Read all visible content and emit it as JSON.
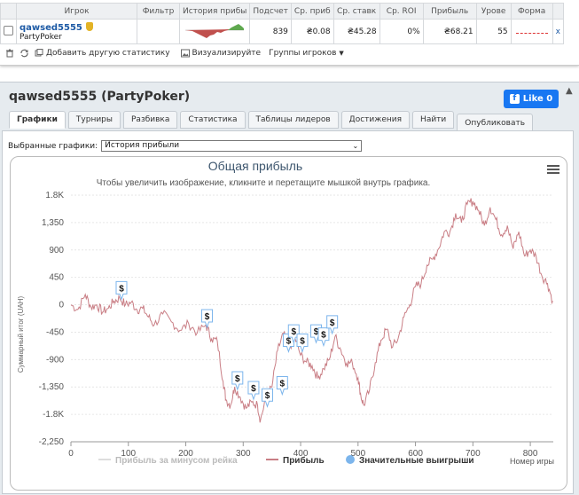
{
  "table": {
    "headers": [
      "Игрок",
      "Фильтр",
      "История прибы",
      "Подсчет",
      "Ср. приб",
      "Ср. ставк",
      "Ср. ROI",
      "Прибыль",
      "Урове",
      "Форма"
    ],
    "row": {
      "player_name": "qawsed5555",
      "site": "PartyPoker",
      "count": "839",
      "avg_profit": "₴0.08",
      "avg_stake": "₴45.28",
      "avg_roi": "0%",
      "profit": "₴68.21",
      "level": "55",
      "remove": "x"
    }
  },
  "toolbar": {
    "add_stats": "Добавить другую статистику",
    "visualize": "Визуализируйте",
    "player_groups": "Группы игроков"
  },
  "panel": {
    "title": "qawsed5555 (PartyPoker)",
    "like_label": "Like 0",
    "tabs": [
      "Графики",
      "Турниры",
      "Разбивка",
      "Статистика",
      "Таблицы лидеров",
      "Достижения",
      "Найти"
    ],
    "publish_tab": "Опубликовать",
    "selector_label": "Выбранные графики:",
    "selector_value": "История прибыли"
  },
  "colors": {
    "accent": "#1d5aa5",
    "profit_line": "#c97e85",
    "rake_line": "#dddddd",
    "marker": "#7cb5ec",
    "like": "#1877f2"
  },
  "chart_data": {
    "type": "line",
    "title": "Общая прибыль",
    "subtitle": "Чтобы увеличить изображение, кликните и перетащите мышкой внутрь графика.",
    "xlabel": "Номер игры",
    "ylabel": "Суммарный итог (UAH)",
    "xlim": [
      0,
      840
    ],
    "ylim": [
      -2250,
      1800
    ],
    "y_ticks": [
      "1.8K",
      "1,350",
      "900",
      "450",
      "0",
      "-450",
      "-900",
      "-1,350",
      "-1.8K",
      "-2,250"
    ],
    "x_ticks": [
      "0",
      "100",
      "200",
      "300",
      "400",
      "500",
      "600",
      "700",
      "800"
    ],
    "legend": [
      "Прибыль за минусом рейка",
      "Прибыль",
      "Значительные выигрыши"
    ],
    "series": [
      {
        "name": "Прибыль",
        "x": [
          0,
          12,
          25,
          35,
          45,
          55,
          65,
          75,
          85,
          95,
          105,
          115,
          125,
          135,
          145,
          160,
          175,
          190,
          205,
          220,
          235,
          245,
          255,
          265,
          270,
          278,
          285,
          295,
          305,
          315,
          325,
          330,
          340,
          350,
          360,
          370,
          380,
          390,
          400,
          410,
          420,
          430,
          440,
          450,
          460,
          470,
          480,
          490,
          500,
          505,
          510,
          520,
          530,
          540,
          550,
          560,
          570,
          580,
          590,
          600,
          610,
          620,
          630,
          640,
          650,
          660,
          670,
          680,
          690,
          700,
          710,
          720,
          730,
          740,
          750,
          760,
          770,
          780,
          790,
          800,
          810,
          820,
          830,
          839
        ],
        "y": [
          0,
          -80,
          170,
          -40,
          0,
          -120,
          -60,
          60,
          110,
          0,
          40,
          -80,
          -60,
          -200,
          -330,
          -150,
          -280,
          -420,
          -310,
          -460,
          -330,
          -560,
          -600,
          -1260,
          -1560,
          -1650,
          -1350,
          -1520,
          -1700,
          -1600,
          -1650,
          -1900,
          -1500,
          -1350,
          -750,
          -470,
          -700,
          -540,
          -830,
          -940,
          -1000,
          -1200,
          -1050,
          -900,
          -520,
          -740,
          -960,
          -950,
          -1200,
          -1500,
          -1650,
          -1400,
          -950,
          -580,
          -400,
          -700,
          -550,
          -200,
          0,
          300,
          350,
          650,
          750,
          920,
          1200,
          1200,
          1500,
          1350,
          1650,
          1700,
          1550,
          1300,
          1600,
          1400,
          1150,
          1300,
          920,
          1200,
          800,
          900,
          800,
          480,
          350,
          60
        ]
      },
      {
        "name": "Значительные выигрыши",
        "x": [
          88,
          237,
          290,
          318,
          342,
          368,
          379,
          388,
          403,
          427,
          440,
          455
        ],
        "y": [
          60,
          -400,
          -1420,
          -1580,
          -1700,
          -1500,
          -800,
          -650,
          -800,
          -650,
          -700,
          -500
        ]
      }
    ]
  }
}
